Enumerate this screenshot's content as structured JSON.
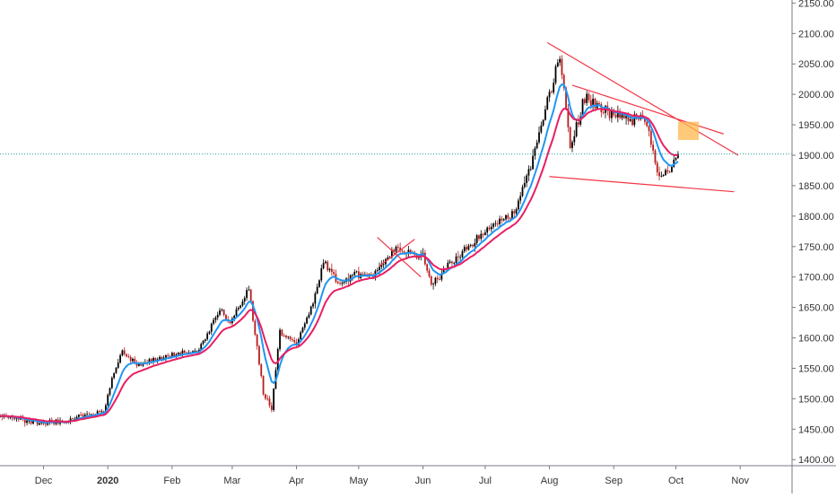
{
  "chart_data": {
    "type": "candlestick",
    "x_axis": {
      "tick_labels": [
        "Dec",
        "2020",
        "Feb",
        "Mar",
        "Apr",
        "May",
        "Jun",
        "Jul",
        "Aug",
        "Sep",
        "Oct",
        "Nov"
      ],
      "tick_months": [
        "2019-12-01",
        "2020-01-01",
        "2020-02-01",
        "2020-03-01",
        "2020-04-01",
        "2020-05-01",
        "2020-06-01",
        "2020-07-01",
        "2020-08-01",
        "2020-09-01",
        "2020-10-01",
        "2020-11-01"
      ],
      "range": [
        "2019-11-10",
        "2020-11-26"
      ]
    },
    "y_axis": {
      "tick_labels": [
        "1400.00",
        "1450.00",
        "1500.00",
        "1550.00",
        "1600.00",
        "1650.00",
        "1700.00",
        "1750.00",
        "1800.00",
        "1850.00",
        "1900.00",
        "1950.00",
        "2000.00",
        "2050.00",
        "2100.00",
        "2150.00"
      ],
      "range": [
        1390,
        2155
      ],
      "position": "right"
    },
    "price_path": [
      {
        "date": "2019-11-10",
        "price": 1472
      },
      {
        "date": "2019-11-28",
        "price": 1460
      },
      {
        "date": "2019-12-10",
        "price": 1463
      },
      {
        "date": "2019-12-30",
        "price": 1480
      },
      {
        "date": "2020-01-03",
        "price": 1532
      },
      {
        "date": "2020-01-08",
        "price": 1578
      },
      {
        "date": "2020-01-15",
        "price": 1555
      },
      {
        "date": "2020-01-31",
        "price": 1572
      },
      {
        "date": "2020-02-14",
        "price": 1580
      },
      {
        "date": "2020-02-24",
        "price": 1648
      },
      {
        "date": "2020-02-29",
        "price": 1625
      },
      {
        "date": "2020-03-09",
        "price": 1680
      },
      {
        "date": "2020-03-16",
        "price": 1510
      },
      {
        "date": "2020-03-20",
        "price": 1485
      },
      {
        "date": "2020-03-24",
        "price": 1610
      },
      {
        "date": "2020-04-01",
        "price": 1590
      },
      {
        "date": "2020-04-08",
        "price": 1650
      },
      {
        "date": "2020-04-14",
        "price": 1725
      },
      {
        "date": "2020-04-21",
        "price": 1690
      },
      {
        "date": "2020-04-30",
        "price": 1705
      },
      {
        "date": "2020-05-08",
        "price": 1700
      },
      {
        "date": "2020-05-18",
        "price": 1745
      },
      {
        "date": "2020-06-01",
        "price": 1735
      },
      {
        "date": "2020-06-05",
        "price": 1685
      },
      {
        "date": "2020-06-15",
        "price": 1725
      },
      {
        "date": "2020-06-30",
        "price": 1772
      },
      {
        "date": "2020-07-15",
        "price": 1805
      },
      {
        "date": "2020-07-24",
        "price": 1895
      },
      {
        "date": "2020-08-06",
        "price": 2065
      },
      {
        "date": "2020-08-11",
        "price": 1912
      },
      {
        "date": "2020-08-18",
        "price": 1995
      },
      {
        "date": "2020-08-31",
        "price": 1965
      },
      {
        "date": "2020-09-17",
        "price": 1955
      },
      {
        "date": "2020-09-23",
        "price": 1862
      },
      {
        "date": "2020-09-29",
        "price": 1885
      },
      {
        "date": "2020-10-02",
        "price": 1902
      }
    ],
    "moving_averages": [
      {
        "color": "#2196F3",
        "lag_days": 9
      },
      {
        "color": "#E91E63",
        "lag_days": 18
      }
    ],
    "current_price": 1902,
    "trendlines": [
      {
        "color": "#F23645",
        "from": {
          "date": "2020-07-31",
          "price": 2085
        },
        "to": {
          "date": "2020-10-31",
          "price": 1900
        }
      },
      {
        "color": "#F23645",
        "from": {
          "date": "2020-08-12",
          "price": 2015
        },
        "to": {
          "date": "2020-10-24",
          "price": 1935
        }
      },
      {
        "color": "#F23645",
        "from": {
          "date": "2020-08-01",
          "price": 1865
        },
        "to": {
          "date": "2020-10-29",
          "price": 1840
        }
      },
      {
        "color": "#F23645",
        "from": {
          "date": "2020-05-10",
          "price": 1765
        },
        "to": {
          "date": "2020-05-31",
          "price": 1700
        }
      },
      {
        "color": "#F23645",
        "from": {
          "date": "2020-05-11",
          "price": 1718
        },
        "to": {
          "date": "2020-05-28",
          "price": 1762
        }
      }
    ],
    "highlight_box": {
      "color": "#FFB74D",
      "from": {
        "date": "2020-10-02",
        "price": 1955
      },
      "to": {
        "date": "2020-10-12",
        "price": 1925
      }
    },
    "grid": false,
    "colors": {
      "up": "#000000",
      "down": "#B71C1C",
      "price_line": "#26A69A",
      "axis": "#787B86"
    }
  }
}
